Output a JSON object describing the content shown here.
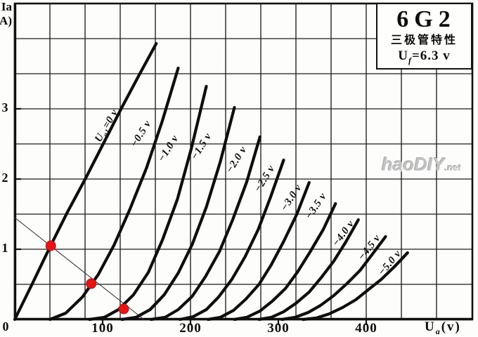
{
  "header_box": {
    "model": "6G2",
    "subtitle": "三极管特性",
    "heater_pre": "U",
    "heater_sub": "f",
    "heater_post": "=6.3 v"
  },
  "watermark": {
    "main": "haoDIY",
    "suffix": ".net"
  },
  "axes": {
    "y_title_line1": "Ia",
    "y_title_line2": "(mA)",
    "origin_label": "0",
    "x_title_pre": "U",
    "x_title_sub": "a",
    "x_title_post": "(v)",
    "x_ticks": [
      {
        "v": 100,
        "label": "100"
      },
      {
        "v": 200,
        "label": "200"
      },
      {
        "v": 300,
        "label": "300"
      },
      {
        "v": 400,
        "label": "400"
      }
    ],
    "y_ticks": [
      {
        "ma": 1,
        "label": "1"
      },
      {
        "ma": 2,
        "label": "2"
      },
      {
        "ma": 3,
        "label": "3"
      }
    ]
  },
  "chart_data": {
    "type": "line",
    "title": "6G2 三极管特性 (triode plate characteristics)",
    "xlabel": "Ua (v)",
    "ylabel": "Ia (mA)",
    "xlim": [
      0,
      520
    ],
    "ylim": [
      0,
      4.5
    ],
    "grid": true,
    "grid_step_v": 40,
    "grid_step_ma": 0.5,
    "series": [
      {
        "name": "Ug1=0 v",
        "label_pre": "U",
        "label_sub": "g1",
        "label_post": "=0 v",
        "points": [
          [
            0,
            0
          ],
          [
            20,
            0.51
          ],
          [
            40,
            1.03
          ],
          [
            60,
            1.53
          ],
          [
            81,
            2.02
          ],
          [
            101,
            2.51
          ],
          [
            121,
            3.0
          ],
          [
            141,
            3.47
          ],
          [
            161,
            3.93
          ]
        ]
      },
      {
        "name": "-0.5 v",
        "points": [
          [
            40,
            0
          ],
          [
            58,
            0.09
          ],
          [
            77,
            0.32
          ],
          [
            95,
            0.64
          ],
          [
            113,
            1.06
          ],
          [
            131,
            1.57
          ],
          [
            150,
            2.16
          ],
          [
            168,
            2.83
          ],
          [
            186,
            3.58
          ]
        ]
      },
      {
        "name": "-1.0 v",
        "points": [
          [
            85,
            0
          ],
          [
            102,
            0.03
          ],
          [
            118,
            0.14
          ],
          [
            135,
            0.35
          ],
          [
            152,
            0.67
          ],
          [
            168,
            1.13
          ],
          [
            185,
            1.71
          ],
          [
            201,
            2.44
          ],
          [
            218,
            3.32
          ]
        ]
      },
      {
        "name": "-1.5 v",
        "points": [
          [
            122,
            0
          ],
          [
            138,
            0.03
          ],
          [
            154,
            0.14
          ],
          [
            170,
            0.35
          ],
          [
            186,
            0.66
          ],
          [
            202,
            1.07
          ],
          [
            218,
            1.6
          ],
          [
            234,
            2.25
          ],
          [
            250,
            3.02
          ]
        ]
      },
      {
        "name": "-2.0 v",
        "points": [
          [
            155,
            0
          ],
          [
            171,
            0.03
          ],
          [
            186,
            0.14
          ],
          [
            202,
            0.33
          ],
          [
            217,
            0.61
          ],
          [
            233,
            0.97
          ],
          [
            248,
            1.42
          ],
          [
            264,
            1.96
          ],
          [
            279,
            2.6
          ]
        ]
      },
      {
        "name": "-2.5 v",
        "points": [
          [
            188,
            0
          ],
          [
            203,
            0.04
          ],
          [
            218,
            0.14
          ],
          [
            232,
            0.32
          ],
          [
            247,
            0.57
          ],
          [
            262,
            0.89
          ],
          [
            277,
            1.28
          ],
          [
            291,
            1.74
          ],
          [
            306,
            2.27
          ]
        ]
      },
      {
        "name": "-3.0 v",
        "points": [
          [
            220,
            0
          ],
          [
            234,
            0.03
          ],
          [
            249,
            0.13
          ],
          [
            263,
            0.29
          ],
          [
            278,
            0.5
          ],
          [
            292,
            0.78
          ],
          [
            306,
            1.11
          ],
          [
            321,
            1.5
          ],
          [
            335,
            1.95
          ]
        ]
      },
      {
        "name": "-3.5 v",
        "points": [
          [
            250,
            0
          ],
          [
            264,
            0.03
          ],
          [
            279,
            0.12
          ],
          [
            293,
            0.26
          ],
          [
            308,
            0.44
          ],
          [
            322,
            0.68
          ],
          [
            336,
            0.96
          ],
          [
            351,
            1.28
          ],
          [
            365,
            1.65
          ]
        ]
      },
      {
        "name": "-4.0 v",
        "points": [
          [
            278,
            0
          ],
          [
            292,
            0.03
          ],
          [
            306,
            0.11
          ],
          [
            320,
            0.23
          ],
          [
            335,
            0.39
          ],
          [
            349,
            0.6
          ],
          [
            363,
            0.83
          ],
          [
            377,
            1.11
          ],
          [
            391,
            1.42
          ]
        ]
      },
      {
        "name": "-4.5 v",
        "points": [
          [
            304,
            0
          ],
          [
            319,
            0.03
          ],
          [
            334,
            0.1
          ],
          [
            348,
            0.2
          ],
          [
            363,
            0.34
          ],
          [
            378,
            0.51
          ],
          [
            393,
            0.7
          ],
          [
            407,
            0.93
          ],
          [
            422,
            1.18
          ]
        ]
      },
      {
        "name": "-5.0 v",
        "points": [
          [
            328,
            0
          ],
          [
            343,
            0.02
          ],
          [
            358,
            0.08
          ],
          [
            373,
            0.17
          ],
          [
            388,
            0.28
          ],
          [
            402,
            0.42
          ],
          [
            417,
            0.57
          ],
          [
            432,
            0.75
          ],
          [
            447,
            0.95
          ]
        ]
      }
    ],
    "load_line": {
      "points": [
        [
          0,
          1.45
        ],
        [
          147,
          0
        ]
      ]
    },
    "operating_points": [
      [
        41,
        1.05
      ],
      [
        87,
        0.51
      ],
      [
        124,
        0.15
      ]
    ],
    "colors": {
      "curve": "#0e0e0e",
      "grid": "#1c1c1c",
      "dot": "#e61414",
      "load_line": "#333333"
    }
  }
}
